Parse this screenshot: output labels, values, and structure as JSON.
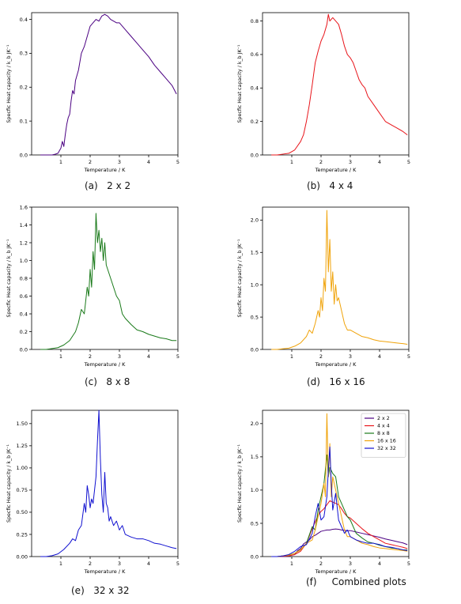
{
  "chart_data": [
    {
      "type": "line",
      "caption": "(a)   2 x 2",
      "xlabel": "Temperature / K",
      "ylabel": "Specfic Heat capacity / k_b JK⁻¹",
      "xlim": [
        0,
        5
      ],
      "ylim": [
        0,
        0.42
      ],
      "xticks": [
        1,
        2,
        3,
        4,
        5
      ],
      "yticks": [
        0.0,
        0.1,
        0.2,
        0.3,
        0.4
      ],
      "ytick_labels": [
        "0.0",
        "0.1",
        "0.2",
        "0.3",
        "0.4"
      ],
      "color": "#4b0082",
      "series": [
        {
          "x": [
            0.3,
            0.4,
            0.5,
            0.6,
            0.7,
            0.8,
            0.9,
            1.0,
            1.05,
            1.1,
            1.15,
            1.2,
            1.25,
            1.3,
            1.35,
            1.4,
            1.45,
            1.5,
            1.6,
            1.7,
            1.8,
            1.9,
            2.0,
            2.1,
            2.2,
            2.3,
            2.4,
            2.5,
            2.6,
            2.7,
            2.8,
            2.9,
            3.0,
            3.2,
            3.4,
            3.6,
            3.8,
            4.0,
            4.2,
            4.4,
            4.6,
            4.8,
            4.95
          ],
          "y": [
            0.0,
            0.0,
            0.0,
            0.0,
            0.0,
            0.002,
            0.005,
            0.02,
            0.04,
            0.025,
            0.06,
            0.09,
            0.11,
            0.12,
            0.16,
            0.19,
            0.18,
            0.22,
            0.25,
            0.3,
            0.32,
            0.35,
            0.38,
            0.39,
            0.4,
            0.395,
            0.41,
            0.415,
            0.41,
            0.4,
            0.395,
            0.39,
            0.39,
            0.37,
            0.35,
            0.33,
            0.31,
            0.29,
            0.265,
            0.245,
            0.225,
            0.205,
            0.18
          ]
        }
      ]
    },
    {
      "type": "line",
      "caption": "(b)   4 x 4",
      "xlabel": "Temperature / K",
      "ylabel": "Specfic Heat capacity / k_b JK⁻¹",
      "xlim": [
        0,
        5
      ],
      "ylim": [
        0,
        0.85
      ],
      "xticks": [
        1,
        2,
        3,
        4,
        5
      ],
      "yticks": [
        0.0,
        0.2,
        0.4,
        0.6,
        0.8
      ],
      "ytick_labels": [
        "0.0",
        "0.2",
        "0.4",
        "0.6",
        "0.8"
      ],
      "color": "#e8141a",
      "series": [
        {
          "x": [
            0.3,
            0.5,
            0.7,
            0.9,
            1.1,
            1.3,
            1.4,
            1.5,
            1.6,
            1.7,
            1.8,
            1.9,
            2.0,
            2.1,
            2.2,
            2.25,
            2.3,
            2.4,
            2.5,
            2.6,
            2.7,
            2.8,
            2.9,
            3.0,
            3.1,
            3.2,
            3.3,
            3.4,
            3.5,
            3.6,
            3.8,
            4.0,
            4.2,
            4.4,
            4.6,
            4.8,
            4.95
          ],
          "y": [
            0.0,
            0.0,
            0.005,
            0.01,
            0.03,
            0.08,
            0.12,
            0.2,
            0.3,
            0.42,
            0.55,
            0.62,
            0.68,
            0.72,
            0.78,
            0.84,
            0.8,
            0.82,
            0.8,
            0.78,
            0.72,
            0.65,
            0.6,
            0.58,
            0.55,
            0.5,
            0.45,
            0.42,
            0.4,
            0.35,
            0.3,
            0.25,
            0.2,
            0.18,
            0.16,
            0.14,
            0.12
          ]
        }
      ]
    },
    {
      "type": "line",
      "caption": "(c)   8 x 8",
      "xlabel": "Temperature / K",
      "ylabel": "Specfic Heat capacity / k_b JK⁻¹",
      "xlim": [
        0,
        5
      ],
      "ylim": [
        0,
        1.6
      ],
      "xticks": [
        1,
        2,
        3,
        4,
        5
      ],
      "yticks": [
        0.0,
        0.2,
        0.4,
        0.6,
        0.8,
        1.0,
        1.2,
        1.4,
        1.6
      ],
      "ytick_labels": [
        "0.0",
        "0.2",
        "0.4",
        "0.6",
        "0.8",
        "1.0",
        "1.2",
        "1.4",
        "1.6"
      ],
      "color": "#1a7a1a",
      "series": [
        {
          "x": [
            0.3,
            0.5,
            0.7,
            0.9,
            1.1,
            1.3,
            1.5,
            1.6,
            1.7,
            1.8,
            1.85,
            1.9,
            1.95,
            2.0,
            2.05,
            2.1,
            2.15,
            2.2,
            2.25,
            2.3,
            2.35,
            2.4,
            2.45,
            2.5,
            2.55,
            2.6,
            2.7,
            2.8,
            2.9,
            3.0,
            3.1,
            3.2,
            3.4,
            3.6,
            3.8,
            4.0,
            4.2,
            4.4,
            4.6,
            4.8,
            4.95
          ],
          "y": [
            0.0,
            0.0,
            0.01,
            0.02,
            0.05,
            0.1,
            0.2,
            0.3,
            0.45,
            0.4,
            0.55,
            0.7,
            0.6,
            0.9,
            0.7,
            1.1,
            0.9,
            1.53,
            1.2,
            1.34,
            1.1,
            1.25,
            1.0,
            1.2,
            0.95,
            0.9,
            0.8,
            0.7,
            0.6,
            0.55,
            0.4,
            0.35,
            0.28,
            0.22,
            0.2,
            0.17,
            0.15,
            0.13,
            0.12,
            0.1,
            0.1
          ]
        }
      ]
    },
    {
      "type": "line",
      "caption": "(d)   16 x 16",
      "xlabel": "Temperature / K",
      "ylabel": "Specfic Heat capacity / k_b JK⁻¹",
      "xlim": [
        0,
        5
      ],
      "ylim": [
        0,
        2.2
      ],
      "xticks": [
        1,
        2,
        3,
        4,
        5
      ],
      "yticks": [
        0.0,
        0.5,
        1.0,
        1.5,
        2.0
      ],
      "ytick_labels": [
        "0.0",
        "0.5",
        "1.0",
        "1.5",
        "2.0"
      ],
      "color": "#f0a30a",
      "series": [
        {
          "x": [
            0.3,
            0.5,
            0.7,
            0.9,
            1.1,
            1.3,
            1.5,
            1.6,
            1.7,
            1.8,
            1.9,
            1.95,
            2.0,
            2.05,
            2.1,
            2.15,
            2.2,
            2.25,
            2.3,
            2.35,
            2.4,
            2.45,
            2.5,
            2.55,
            2.6,
            2.7,
            2.8,
            2.9,
            3.0,
            3.2,
            3.4,
            3.6,
            3.8,
            4.0,
            4.2,
            4.4,
            4.6,
            4.8,
            4.95
          ],
          "y": [
            0.0,
            0.0,
            0.01,
            0.02,
            0.05,
            0.1,
            0.2,
            0.3,
            0.25,
            0.4,
            0.6,
            0.5,
            0.8,
            0.6,
            1.1,
            0.9,
            2.15,
            1.2,
            1.7,
            0.9,
            1.2,
            0.7,
            1.0,
            0.75,
            0.8,
            0.6,
            0.4,
            0.3,
            0.3,
            0.25,
            0.2,
            0.18,
            0.15,
            0.13,
            0.12,
            0.11,
            0.1,
            0.09,
            0.08
          ]
        }
      ]
    },
    {
      "type": "line",
      "caption": "(e)   32 x 32",
      "xlabel": "Temperature / K",
      "ylabel": "Specfic Heat capacity / k_b JK⁻¹",
      "xlim": [
        0,
        5
      ],
      "ylim": [
        0,
        1.65
      ],
      "xticks": [
        1,
        2,
        3,
        4,
        5
      ],
      "yticks": [
        0.0,
        0.25,
        0.5,
        0.75,
        1.0,
        1.25,
        1.5
      ],
      "ytick_labels": [
        "0.00",
        "0.25",
        "0.50",
        "0.75",
        "1.00",
        "1.25",
        "1.50"
      ],
      "color": "#1010d0",
      "series": [
        {
          "x": [
            0.3,
            0.5,
            0.7,
            0.9,
            1.1,
            1.3,
            1.4,
            1.5,
            1.6,
            1.7,
            1.8,
            1.85,
            1.9,
            1.95,
            2.0,
            2.05,
            2.1,
            2.15,
            2.2,
            2.25,
            2.3,
            2.35,
            2.4,
            2.45,
            2.5,
            2.55,
            2.6,
            2.65,
            2.7,
            2.8,
            2.9,
            3.0,
            3.1,
            3.2,
            3.4,
            3.6,
            3.8,
            4.0,
            4.2,
            4.4,
            4.6,
            4.8,
            4.95
          ],
          "y": [
            0.0,
            0.0,
            0.01,
            0.03,
            0.08,
            0.15,
            0.2,
            0.18,
            0.3,
            0.35,
            0.6,
            0.5,
            0.8,
            0.7,
            0.55,
            0.65,
            0.6,
            0.75,
            0.9,
            1.3,
            1.65,
            1.1,
            0.7,
            0.5,
            0.95,
            0.6,
            0.55,
            0.4,
            0.45,
            0.35,
            0.4,
            0.3,
            0.35,
            0.25,
            0.22,
            0.2,
            0.2,
            0.18,
            0.15,
            0.14,
            0.12,
            0.1,
            0.09
          ]
        }
      ]
    },
    {
      "type": "line",
      "caption": "(f)     Combined plots",
      "xlabel": "Temperature / K",
      "ylabel": "Specfic Heat capacity / k_b JK⁻¹",
      "xlim": [
        0,
        5
      ],
      "ylim": [
        0,
        2.2
      ],
      "xticks": [
        1,
        2,
        3,
        4,
        5
      ],
      "yticks": [
        0.0,
        0.5,
        1.0,
        1.5,
        2.0
      ],
      "ytick_labels": [
        "0.0",
        "0.5",
        "1.0",
        "1.5",
        "2.0"
      ],
      "legend_position": "top-right",
      "series": [
        {
          "name": "2 x 2",
          "color": "#4b0082",
          "x": [
            0.3,
            0.5,
            0.7,
            0.9,
            1.0,
            1.1,
            1.2,
            1.3,
            1.4,
            1.5,
            1.6,
            1.7,
            1.8,
            1.9,
            2.0,
            2.1,
            2.2,
            2.3,
            2.4,
            2.5,
            2.6,
            2.7,
            2.8,
            2.9,
            3.0,
            3.2,
            3.4,
            3.6,
            3.8,
            4.0,
            4.2,
            4.4,
            4.6,
            4.8,
            4.95
          ],
          "y": [
            0.0,
            0.0,
            0.0,
            0.005,
            0.02,
            0.03,
            0.09,
            0.12,
            0.19,
            0.22,
            0.25,
            0.3,
            0.32,
            0.35,
            0.38,
            0.39,
            0.4,
            0.4,
            0.41,
            0.415,
            0.41,
            0.4,
            0.395,
            0.39,
            0.39,
            0.37,
            0.35,
            0.33,
            0.31,
            0.29,
            0.265,
            0.245,
            0.225,
            0.205,
            0.18
          ]
        },
        {
          "name": "4 x 4",
          "color": "#e8141a",
          "x": [
            0.3,
            0.5,
            0.7,
            0.9,
            1.1,
            1.3,
            1.5,
            1.7,
            1.9,
            2.0,
            2.1,
            2.2,
            2.3,
            2.4,
            2.5,
            2.6,
            2.7,
            2.8,
            2.9,
            3.0,
            3.2,
            3.4,
            3.6,
            3.8,
            4.0,
            4.2,
            4.4,
            4.6,
            4.8,
            4.95
          ],
          "y": [
            0.0,
            0.0,
            0.005,
            0.01,
            0.03,
            0.08,
            0.2,
            0.42,
            0.62,
            0.68,
            0.72,
            0.78,
            0.84,
            0.82,
            0.8,
            0.78,
            0.72,
            0.65,
            0.6,
            0.58,
            0.5,
            0.42,
            0.35,
            0.3,
            0.25,
            0.2,
            0.18,
            0.16,
            0.14,
            0.12
          ]
        },
        {
          "name": "8 x 8",
          "color": "#1a7a1a",
          "x": [
            0.3,
            0.5,
            0.7,
            0.9,
            1.1,
            1.3,
            1.5,
            1.7,
            1.8,
            1.9,
            2.0,
            2.1,
            2.2,
            2.25,
            2.3,
            2.4,
            2.5,
            2.6,
            2.7,
            2.8,
            2.9,
            3.0,
            3.2,
            3.4,
            3.6,
            3.8,
            4.0,
            4.2,
            4.4,
            4.6,
            4.8,
            4.95
          ],
          "y": [
            0.0,
            0.0,
            0.01,
            0.02,
            0.05,
            0.1,
            0.2,
            0.45,
            0.4,
            0.7,
            0.9,
            1.1,
            1.53,
            1.2,
            1.34,
            1.25,
            1.2,
            0.9,
            0.8,
            0.7,
            0.6,
            0.55,
            0.35,
            0.28,
            0.22,
            0.2,
            0.17,
            0.15,
            0.13,
            0.12,
            0.1,
            0.1
          ]
        },
        {
          "name": "16 x 16",
          "color": "#f0a30a",
          "x": [
            0.3,
            0.5,
            0.7,
            0.9,
            1.1,
            1.3,
            1.5,
            1.7,
            1.8,
            1.9,
            2.0,
            2.1,
            2.15,
            2.2,
            2.25,
            2.3,
            2.35,
            2.4,
            2.5,
            2.6,
            2.7,
            2.8,
            2.9,
            3.0,
            3.2,
            3.4,
            3.6,
            3.8,
            4.0,
            4.2,
            4.4,
            4.6,
            4.8,
            4.95
          ],
          "y": [
            0.0,
            0.0,
            0.01,
            0.02,
            0.05,
            0.1,
            0.2,
            0.25,
            0.4,
            0.6,
            0.8,
            1.1,
            0.9,
            2.15,
            1.2,
            1.7,
            0.9,
            1.2,
            1.0,
            0.8,
            0.6,
            0.4,
            0.3,
            0.3,
            0.25,
            0.2,
            0.18,
            0.15,
            0.13,
            0.12,
            0.11,
            0.1,
            0.09,
            0.08
          ]
        },
        {
          "name": "32 x 32",
          "color": "#1010d0",
          "x": [
            0.3,
            0.5,
            0.7,
            0.9,
            1.1,
            1.3,
            1.5,
            1.7,
            1.8,
            1.9,
            2.0,
            2.1,
            2.2,
            2.25,
            2.3,
            2.35,
            2.4,
            2.5,
            2.6,
            2.7,
            2.8,
            2.9,
            3.0,
            3.2,
            3.4,
            3.6,
            3.8,
            4.0,
            4.2,
            4.4,
            4.6,
            4.8,
            4.95
          ],
          "y": [
            0.0,
            0.0,
            0.01,
            0.03,
            0.08,
            0.15,
            0.18,
            0.35,
            0.6,
            0.8,
            0.55,
            0.6,
            0.9,
            1.3,
            1.65,
            1.1,
            0.7,
            0.95,
            0.55,
            0.45,
            0.35,
            0.4,
            0.3,
            0.25,
            0.22,
            0.2,
            0.2,
            0.18,
            0.15,
            0.14,
            0.12,
            0.1,
            0.09
          ]
        }
      ]
    }
  ]
}
